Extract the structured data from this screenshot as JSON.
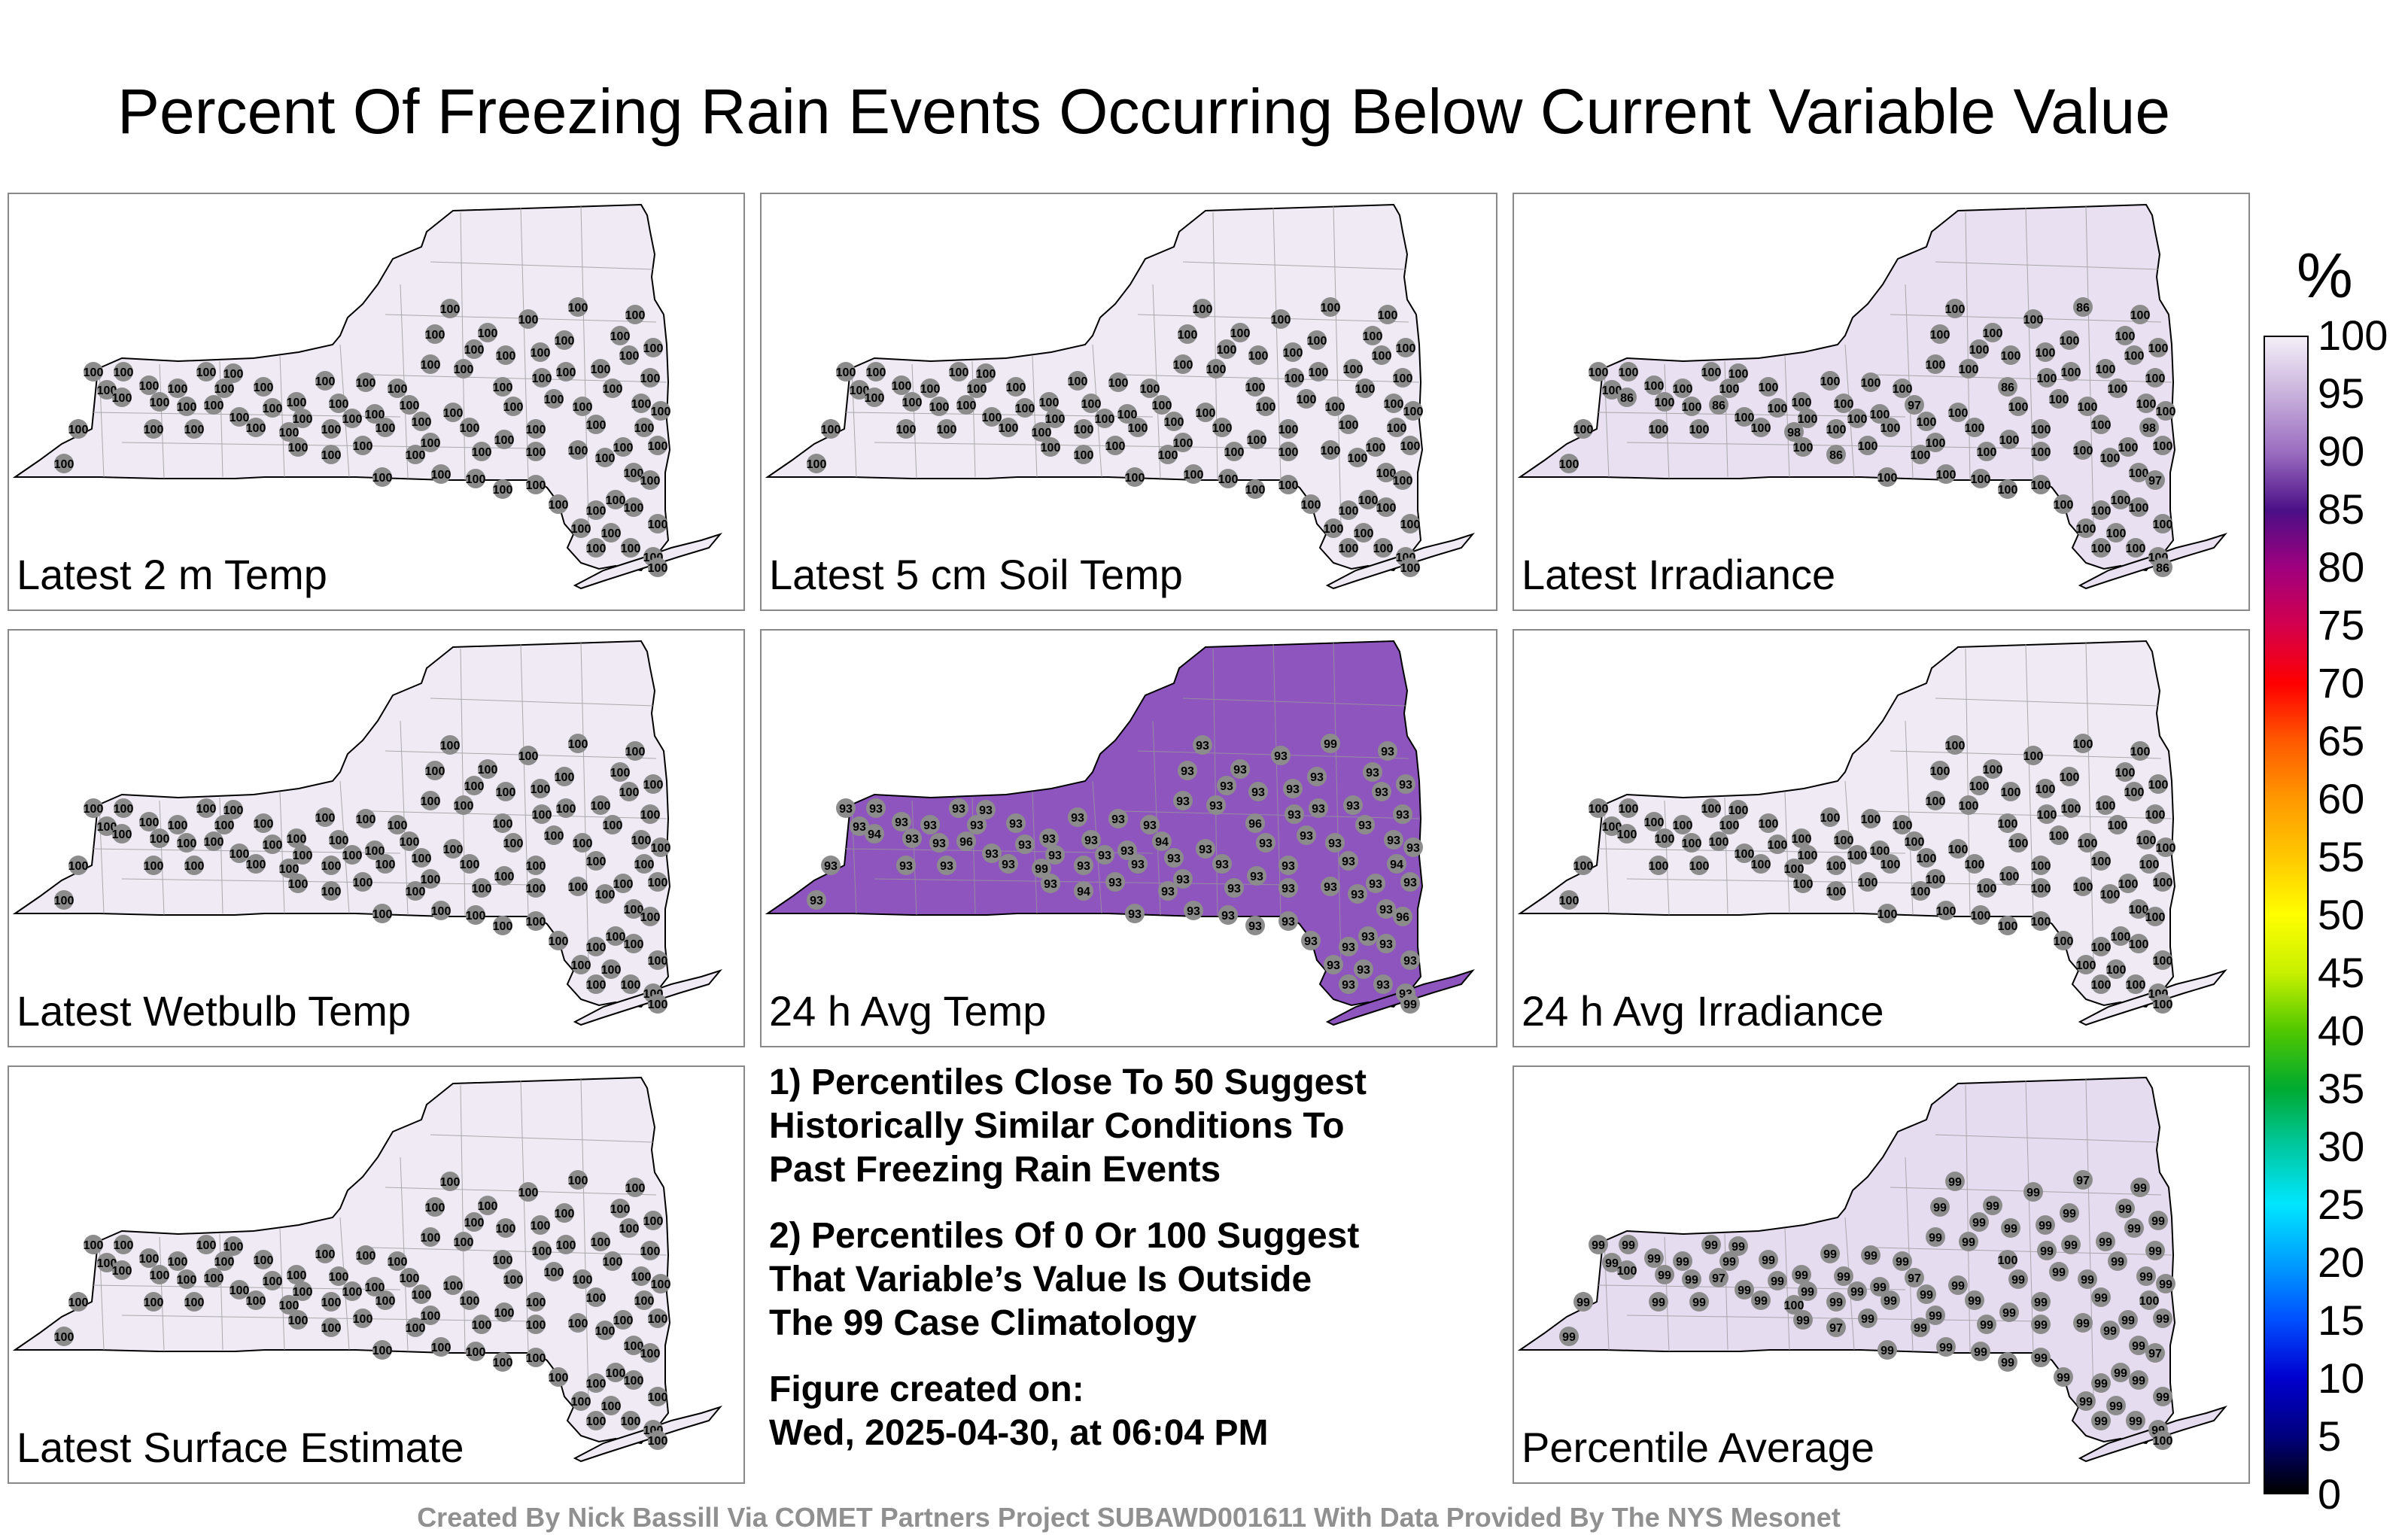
{
  "title": "Percent Of Freezing Rain Events Occurring Below Current Variable Value",
  "colorbar": {
    "unit": "%",
    "ticks": [
      "100",
      "95",
      "90",
      "85",
      "80",
      "75",
      "70",
      "65",
      "60",
      "55",
      "50",
      "45",
      "40",
      "35",
      "30",
      "25",
      "20",
      "15",
      "10",
      "5",
      "0"
    ],
    "range": [
      0,
      100
    ],
    "colors_top_to_bottom": [
      "#f3eff7",
      "#c8b0dc",
      "#9a6cc0",
      "#4b0f86",
      "#a0007e",
      "#d4004c",
      "#ff0000",
      "#ff5a00",
      "#ff9900",
      "#ffc800",
      "#ffff00",
      "#c8f000",
      "#50c800",
      "#00aa30",
      "#00c8a0",
      "#00e6ff",
      "#00a0ff",
      "#0050ff",
      "#0000d0",
      "#000080",
      "#000000"
    ]
  },
  "panels": [
    {
      "label": "Latest 2 m Temp",
      "station_value": "100",
      "fill": "#efeaf4",
      "highlights": []
    },
    {
      "label": "Latest 5 cm Soil Temp",
      "station_value": "100",
      "fill": "#efeaf4",
      "highlights": []
    },
    {
      "label": "Latest Irradiance",
      "station_value": "100",
      "fill": "#e9e0f1",
      "highlights": [
        "86",
        "86",
        "98",
        "97"
      ]
    },
    {
      "label": "Latest Wetbulb Temp",
      "station_value": "100",
      "fill": "#efeaf4",
      "highlights": []
    },
    {
      "label": "24 h Avg Temp",
      "station_value": "93",
      "fill": "#8e55be",
      "highlights": [
        "94",
        "96",
        "99"
      ]
    },
    {
      "label": "24 h Avg Irradiance",
      "station_value": "100",
      "fill": "#efeaf4",
      "highlights": []
    },
    {
      "label": "Latest Surface Estimate",
      "station_value": "100",
      "fill": "#efeaf4",
      "highlights": []
    },
    {
      "label": "Percentile Average",
      "station_value": "99",
      "fill": "#e6dcf0",
      "highlights": [
        "100",
        "97"
      ]
    }
  ],
  "notes": [
    "1) Percentiles Close To 50 Suggest\nHistorically Similar Conditions To\nPast Freezing Rain Events",
    "2) Percentiles Of 0 Or 100 Suggest\nThat Variable’s Value Is Outside\nThe 99 Case Climatology",
    "Figure created on:\nWed, 2025-04-30, at 06:04 PM"
  ],
  "footer": "Created By Nick Bassill Via COMET Partners Project SUBAWD001611 With Data Provided By The NYS Mesonet"
}
